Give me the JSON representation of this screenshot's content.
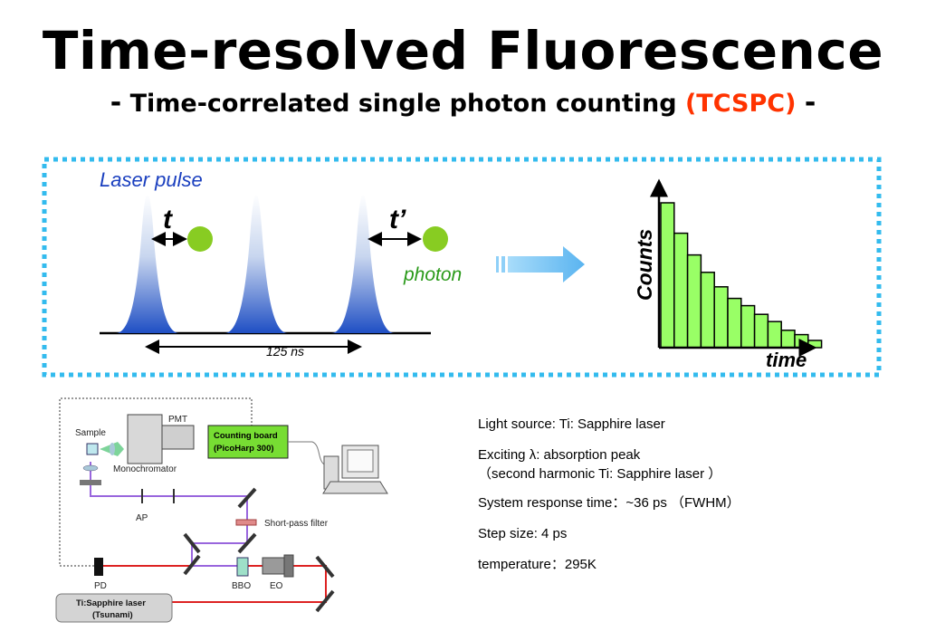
{
  "slide": {
    "title": "Time-resolved  Fluorescence",
    "subtitle_dash_left": "-",
    "subtitle_main": "Time-correlated single photon counting",
    "subtitle_accent": "(TCSPC)",
    "subtitle_dash_right": "-",
    "accent_color": "#ff3300"
  },
  "tcspc_diagram": {
    "laser_pulse_label": "Laser pulse",
    "t_label": "t",
    "t_prime_label": "t’",
    "photon_label": "photon",
    "period_label": "125 ns",
    "pulse_count": 3,
    "border_color": "#33bbee",
    "photon_color": "#88cc22",
    "pulse_color": "#2255cc",
    "arrow_color": "#66bbf2"
  },
  "histogram": {
    "ylabel": "Counts",
    "xlabel": "time",
    "bar_color": "#99ff66",
    "relative_counts": [
      1.0,
      0.79,
      0.64,
      0.52,
      0.42,
      0.34,
      0.29,
      0.23,
      0.18,
      0.12,
      0.09,
      0.05
    ]
  },
  "setup": {
    "labels": {
      "sample": "Sample",
      "pmt": "PMT",
      "monochromator": "Monochromator",
      "counting_board_line1": "Counting board",
      "counting_board_line2": "(PicoHarp 300)",
      "ap": "AP",
      "short_pass": "Short-pass filter",
      "pd": "PD",
      "bbo": "BBO",
      "eo": "EO",
      "laser_line1": "Ti:Sapphire laser",
      "laser_line2": "(Tsunami)"
    }
  },
  "info": {
    "light_source": "Light source:   Ti: Sapphire laser",
    "exciting_line1": "Exciting λ:    absorption peak",
    "exciting_line2": "（second harmonic Ti: Sapphire laser ）",
    "response": "System response time：~36 ps （FWHM）",
    "step": "Step size:  4 ps",
    "temperature": "temperature：295K"
  }
}
